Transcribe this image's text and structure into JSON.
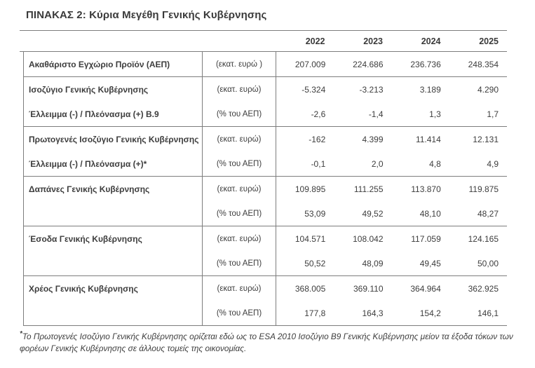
{
  "title": "ΠΙΝΑΚΑΣ 2: Κύρια Μεγέθη Γενικής Κυβέρνησης",
  "table": {
    "years": [
      "2022",
      "2023",
      "2024",
      "2025"
    ],
    "groups": [
      {
        "rows": [
          {
            "label": "Ακαθάριστο Εγχώριο Προϊόν (ΑΕΠ)",
            "unit": "(εκατ. ευρώ )",
            "values": [
              "207.009",
              "224.686",
              "236.736",
              "248.354"
            ]
          }
        ]
      },
      {
        "rows": [
          {
            "label": "Ισοζύγιο Γενικής Κυβέρνησης",
            "unit": "(εκατ. ευρώ)",
            "values": [
              "-5.324",
              "-3.213",
              "3.189",
              "4.290"
            ]
          },
          {
            "label": "Έλλειμμα (-) / Πλεόνασμα (+) Β.9",
            "unit": "(% του ΑΕΠ)",
            "values": [
              "-2,6",
              "-1,4",
              "1,3",
              "1,7"
            ]
          }
        ]
      },
      {
        "rows": [
          {
            "label": "Πρωτογενές Ισοζύγιο Γενικής Κυβέρνησης",
            "unit": "(εκατ. ευρώ)",
            "values": [
              "-162",
              "4.399",
              "11.414",
              "12.131"
            ]
          },
          {
            "label": "Έλλειμμα (-) / Πλεόνασμα (+)*",
            "unit": "(% του ΑΕΠ)",
            "values": [
              "-0,1",
              "2,0",
              "4,8",
              "4,9"
            ]
          }
        ]
      },
      {
        "rows": [
          {
            "label": "Δαπάνες Γενικής Κυβέρνησης",
            "unit": "(εκατ. ευρώ)",
            "values": [
              "109.895",
              "111.255",
              "113.870",
              "119.875"
            ]
          },
          {
            "label": "",
            "unit": "(% του ΑΕΠ)",
            "values": [
              "53,09",
              "49,52",
              "48,10",
              "48,27"
            ]
          }
        ]
      },
      {
        "rows": [
          {
            "label": "Έσοδα Γενικής Κυβέρνησης",
            "unit": "(εκατ. ευρώ)",
            "values": [
              "104.571",
              "108.042",
              "117.059",
              "124.165"
            ]
          },
          {
            "label": "",
            "unit": "(% του ΑΕΠ)",
            "values": [
              "50,52",
              "48,09",
              "49,45",
              "50,00"
            ]
          }
        ]
      },
      {
        "rows": [
          {
            "label": "Χρέος Γενικής Κυβέρνησης",
            "unit": "(εκατ. ευρώ)",
            "values": [
              "368.005",
              "369.110",
              "364.964",
              "362.925"
            ]
          },
          {
            "label": "",
            "unit": "(% του ΑΕΠ)",
            "values": [
              "177,8",
              "164,3",
              "154,2",
              "146,1"
            ]
          }
        ]
      }
    ]
  },
  "footnote": {
    "marker": "*",
    "text": "Το Πρωτογενές Ισοζύγιο Γενικής Κυβέρνησης ορίζεται εδώ ως το ESA 2010 Ισοζύγιο Β9 Γενικής Κυβέρνησης μείον τα έξοδα τόκων των φορέων Γενικής Κυβέρνησης σε άλλους τομείς της οικονομίας."
  },
  "colors": {
    "text": "#3d3d3d",
    "line": "#7d7d7d"
  }
}
